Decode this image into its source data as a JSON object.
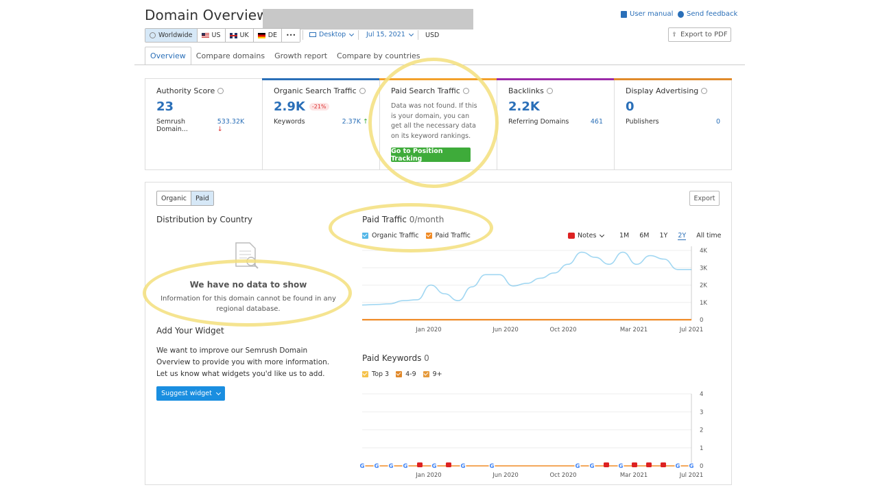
{
  "header": {
    "title": "Domain Overview:",
    "user_manual": "User manual",
    "send_feedback": "Send feedback",
    "export_pdf": "Export to PDF"
  },
  "db_selector": {
    "items": [
      {
        "label": "Worldwide",
        "icon": "globe-icon",
        "active": true
      },
      {
        "label": "US",
        "icon": "flag-us-icon"
      },
      {
        "label": "UK",
        "icon": "flag-uk-icon"
      },
      {
        "label": "DE",
        "icon": "flag-de-icon"
      },
      {
        "label": "•••",
        "icon": "more-icon"
      }
    ],
    "device": "Desktop",
    "date": "Jul 15, 2021",
    "currency": "USD"
  },
  "tabs": [
    "Overview",
    "Compare domains",
    "Growth report",
    "Compare by countries"
  ],
  "cards": {
    "authority": {
      "label": "Authority Score",
      "value": "23",
      "sub_label": "Semrush Domain...",
      "sub_value": "533.32K",
      "arrow": "↓"
    },
    "organic": {
      "label": "Organic Search Traffic",
      "value": "2.9K",
      "change": "-21%",
      "sub_label": "Keywords",
      "sub_value": "2.37K",
      "arrow": "↑"
    },
    "paid": {
      "label": "Paid Search Traffic",
      "message": "Data was not found. If this is your domain, you can get all the necessary data on its keyword rankings.",
      "button": "Go to Position Tracking"
    },
    "backlinks": {
      "label": "Backlinks",
      "value": "2.2K",
      "sub_label": "Referring Domains",
      "sub_value": "461"
    },
    "display": {
      "label": "Display Advertising",
      "value": "0",
      "sub_label": "Publishers",
      "sub_value": "0"
    }
  },
  "colors": {
    "accent": "#2a6fb8",
    "green": "#3eab3a",
    "organic": "#54b7e8",
    "paid": "#f08a24",
    "highlight": "#f3df7d"
  },
  "panel": {
    "toggle": [
      "Organic",
      "Paid"
    ],
    "export": "Export",
    "distribution_title": "Distribution by Country",
    "no_data_title": "We have no data to show",
    "no_data_text": "Information for this domain cannot be found in any regional database.",
    "widget_title": "Add Your Widget",
    "widget_text": "We want to improve our Semrush Domain Overview to provide you with more information. Let us know what widgets you'd like us to add.",
    "suggest_button": "Suggest widget"
  },
  "traffic_chart": {
    "title": "Paid Traffic",
    "subtitle": "0/month",
    "legend": [
      "Organic Traffic",
      "Paid Traffic"
    ],
    "notes": "Notes",
    "periods": [
      "1M",
      "6M",
      "1Y",
      "2Y",
      "All time"
    ],
    "selected_period": "2Y"
  },
  "keywords_chart": {
    "title": "Paid Keywords",
    "count": "0",
    "legend": [
      "Top 3",
      "4-9",
      "9+"
    ]
  },
  "chart_data": [
    {
      "type": "line",
      "title": "Paid Traffic",
      "x": [
        "Jul 2019",
        "Aug 2019",
        "Sep 2019",
        "Oct 2019",
        "Nov 2019",
        "Dec 2019",
        "Jan 2020",
        "Feb 2020",
        "Mar 2020",
        "Apr 2020",
        "May 2020",
        "Jun 2020",
        "Jul 2020",
        "Aug 2020",
        "Sep 2020",
        "Oct 2020",
        "Nov 2020",
        "Dec 2020",
        "Jan 2021",
        "Feb 2021",
        "Mar 2021",
        "Apr 2021",
        "May 2021",
        "Jun 2021",
        "Jul 2021"
      ],
      "x_ticks": [
        "Jan 2020",
        "Jun 2020",
        "Oct 2020",
        "Mar 2021",
        "Jul 2021"
      ],
      "y_ticks": [
        "0",
        "1K",
        "2K",
        "3K",
        "4K"
      ],
      "ylim": [
        0,
        4000
      ],
      "series": [
        {
          "name": "Organic Traffic",
          "values": [
            850,
            880,
            920,
            1100,
            1150,
            2000,
            1500,
            1100,
            1900,
            2600,
            2600,
            1950,
            2100,
            2400,
            2700,
            3200,
            3900,
            3600,
            3200,
            3900,
            3200,
            3700,
            3500,
            2900,
            2900
          ]
        },
        {
          "name": "Paid Traffic",
          "values": [
            0,
            0,
            0,
            0,
            0,
            0,
            0,
            0,
            0,
            0,
            0,
            0,
            0,
            0,
            0,
            0,
            0,
            0,
            0,
            0,
            0,
            0,
            0,
            0,
            0
          ]
        }
      ]
    },
    {
      "type": "line",
      "title": "Paid Keywords",
      "x_ticks": [
        "Jan 2020",
        "Jun 2020",
        "Oct 2020",
        "Mar 2021",
        "Jul 2021"
      ],
      "y_ticks": [
        "0",
        "1",
        "2",
        "3",
        "4"
      ],
      "ylim": [
        0,
        4
      ],
      "series": [
        {
          "name": "Top 3",
          "values": [
            0,
            0,
            0,
            0,
            0
          ]
        },
        {
          "name": "4-9",
          "values": [
            0,
            0,
            0,
            0,
            0
          ]
        },
        {
          "name": "9+",
          "values": [
            0,
            0,
            0,
            0,
            0
          ]
        }
      ],
      "markers": [
        "G",
        "G",
        "G",
        "G",
        "N",
        "G",
        "N",
        "G",
        "G",
        "G",
        "G",
        "N",
        "G",
        "N",
        "N",
        "N",
        "G",
        "G"
      ]
    }
  ]
}
